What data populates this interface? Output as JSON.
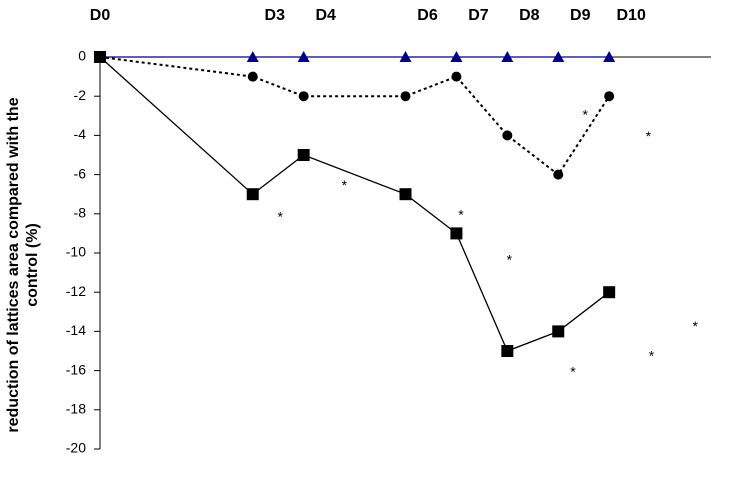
{
  "chart_data": {
    "type": "line",
    "y_label_lines": [
      "reduction of lattices area compared with the",
      "control (%)"
    ],
    "categories": [
      "D0",
      "D3",
      "D4",
      "D6",
      "D7",
      "D8",
      "D9",
      "D10"
    ],
    "x": [
      0,
      3,
      4,
      6,
      7,
      8,
      9,
      10
    ],
    "xlim": [
      0,
      12
    ],
    "ylim": [
      -20,
      0
    ],
    "yticks": [
      0,
      -2,
      -4,
      -6,
      -8,
      -10,
      -12,
      -14,
      -16,
      -18,
      -20
    ],
    "series": [
      {
        "marker": "triangle",
        "color": "#000080",
        "dash": "solid",
        "values": [
          0,
          0,
          0,
          0,
          0,
          0,
          0,
          0
        ]
      },
      {
        "marker": "circle",
        "color": "#000000",
        "dash": "dotted",
        "values": [
          0,
          -1,
          -2,
          -2,
          -1,
          -4,
          -6,
          -2
        ]
      },
      {
        "marker": "square",
        "color": "#000000",
        "dash": "solid",
        "values": [
          0,
          -7,
          -5,
          -7,
          -9,
          -15,
          -14,
          -12
        ]
      }
    ],
    "annotations": [
      {
        "text": "*",
        "x": 3.54,
        "y": -8.2
      },
      {
        "text": "*",
        "x": 4.8,
        "y": -6.6
      },
      {
        "text": "*",
        "x": 7.09,
        "y": -8.1
      },
      {
        "text": "*",
        "x": 8.04,
        "y": -10.4
      },
      {
        "text": "*",
        "x": 9.53,
        "y": -3.0
      },
      {
        "text": "*",
        "x": 10.77,
        "y": -4.1
      },
      {
        "text": "*",
        "x": 9.29,
        "y": -16.1
      },
      {
        "text": "*",
        "x": 10.83,
        "y": -15.3
      },
      {
        "text": "*",
        "x": 11.69,
        "y": -13.8
      }
    ]
  }
}
